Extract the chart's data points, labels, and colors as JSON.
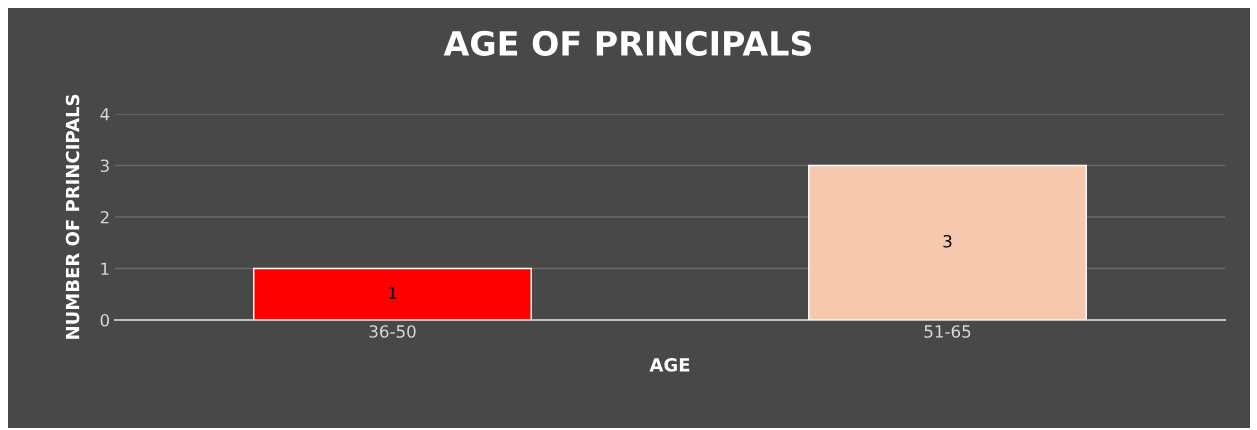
{
  "chart_data": {
    "type": "bar",
    "title": "AGE OF PRINCIPALS",
    "xlabel": "AGE",
    "ylabel": "NUMBER OF PRINCIPALS",
    "categories": [
      "36-50",
      "51-65"
    ],
    "values": [
      1,
      3
    ],
    "colors": [
      "#ff0000",
      "#f6c8ad"
    ],
    "ylim": [
      0,
      4
    ],
    "yticks": [
      0,
      1,
      2,
      3,
      4
    ],
    "grid": "y",
    "data_labels": true,
    "legend": false
  }
}
